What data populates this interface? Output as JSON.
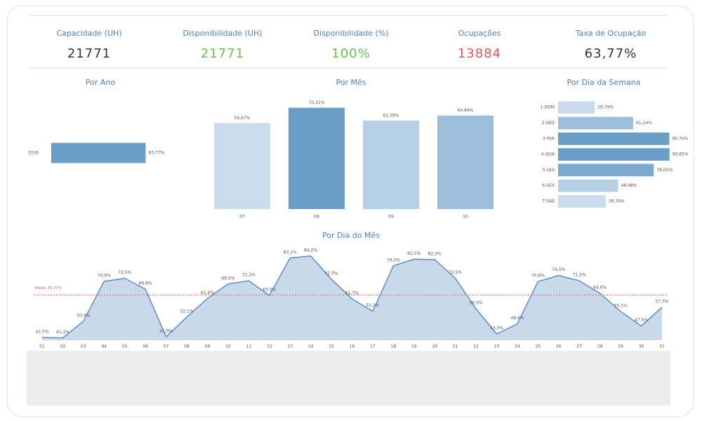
{
  "kpis": [
    {
      "title": "Capacidade (UH)",
      "value": "21771",
      "color": "#333333"
    },
    {
      "title": "Disponibilidade (UH)",
      "value": "21771",
      "color": "#6cbf4a"
    },
    {
      "title": "Disponibilidade (%)",
      "value": "100%",
      "color": "#6cbf4a"
    },
    {
      "title": "Ocupações",
      "value": "13884",
      "color": "#e05555"
    },
    {
      "title": "Taxa de Ocupação",
      "value": "63,77%",
      "color": "#333333"
    }
  ],
  "chart_data": [
    {
      "type": "hbar",
      "title": "Por Ano",
      "categories": [
        "2016"
      ],
      "values": [
        63.77
      ],
      "value_labels": [
        "63,77%"
      ],
      "colors": [
        "#6b9ec6"
      ],
      "xlim": [
        0,
        64
      ]
    },
    {
      "type": "bar",
      "title": "Por Mês",
      "categories": [
        "07",
        "08",
        "09",
        "10"
      ],
      "values": [
        59.67,
        70.31,
        61.39,
        64.84
      ],
      "value_labels": [
        "59,67%",
        "70,31%",
        "61,39%",
        "64,84%"
      ],
      "colors": [
        "#c9dbed",
        "#6b9ec6",
        "#b7d0e6",
        "#9cbedb"
      ],
      "ylim": [
        0,
        72.5
      ]
    },
    {
      "type": "hbar",
      "title": "Por Dia da Semana",
      "categories": [
        "1-DOM",
        "2-SEG",
        "3-TER",
        "4-QUA",
        "5-QUI",
        "6-SEX",
        "7-SÁB"
      ],
      "values": [
        29.79,
        61.24,
        90.7,
        90.85,
        78.05,
        48.98,
        38.76
      ],
      "value_labels": [
        "29,79%",
        "61,24%",
        "90,70%",
        "90,85%",
        "78,05%",
        "48,98%",
        "38,76%"
      ],
      "colors": [
        "#c9dbed",
        "#9cbedb",
        "#6b9ec6",
        "#6b9ec6",
        "#7ea9cf",
        "#b7d0e6",
        "#c9dbed"
      ],
      "xlim": [
        0,
        91
      ]
    },
    {
      "type": "area",
      "title": "Por Dia do Mês",
      "categories": [
        "01",
        "02",
        "03",
        "04",
        "05",
        "06",
        "07",
        "08",
        "09",
        "10",
        "11",
        "12",
        "13",
        "14",
        "15",
        "16",
        "17",
        "18",
        "19",
        "20",
        "21",
        "22",
        "23",
        "24",
        "25",
        "26",
        "27",
        "28",
        "29",
        "30",
        "31"
      ],
      "values": [
        41.5,
        41.3,
        50.0,
        70.9,
        72.5,
        66.8,
        41.9,
        52.1,
        61.9,
        69.5,
        71.2,
        63.5,
        83.1,
        84.2,
        72.0,
        61.7,
        55.2,
        79.0,
        82.5,
        82.3,
        72.5,
        56.5,
        43.3,
        48.6,
        70.8,
        74.0,
        71.2,
        64.6,
        55.1,
        47.5,
        57.3
      ],
      "value_labels": [
        "41,5%",
        "41,3%",
        "50,0%",
        "70,9%",
        "72,5%",
        "66,8%",
        "41,9%",
        "52,1%",
        "61,9%",
        "69,5%",
        "71,2%",
        "63,5%",
        "83,1%",
        "84,2%",
        "72,0%",
        "61,7%",
        "55,2%",
        "79,0%",
        "82,5%",
        "82,3%",
        "72,5%",
        "56,5%",
        "43,3%",
        "48,6%",
        "70,8%",
        "74,0%",
        "71,2%",
        "64,6%",
        "55,1%",
        "47,5%",
        "57,3%"
      ],
      "color": "#5b8fc4",
      "fill": "#c9d9ea",
      "ylim": [
        40,
        90
      ],
      "reference": {
        "value": 63.77,
        "label": "Média: 63,77%",
        "color": "#e05555"
      }
    }
  ]
}
